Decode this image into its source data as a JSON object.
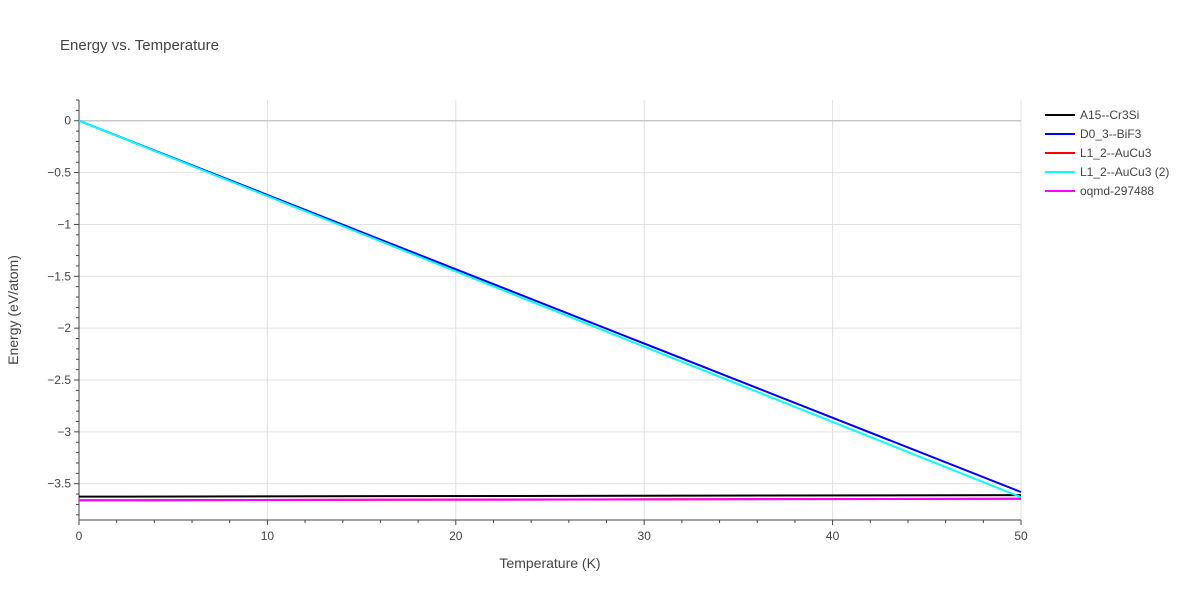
{
  "chart_data": {
    "type": "line",
    "title": "Energy vs. Temperature",
    "xlabel": "Temperature (K)",
    "ylabel": "Energy (eV/atom)",
    "xlim": [
      0,
      50
    ],
    "ylim": [
      -3.85,
      0.2
    ],
    "x_ticks": [
      0,
      10,
      20,
      30,
      40,
      50
    ],
    "x_tick_labels": [
      "0",
      "10",
      "20",
      "30",
      "40",
      "50"
    ],
    "y_ticks": [
      0,
      -0.5,
      -1,
      -1.5,
      -2,
      -2.5,
      -3,
      -3.5
    ],
    "y_tick_labels": [
      "0",
      "−0.5",
      "−1",
      "−1.5",
      "−2",
      "−2.5",
      "−3",
      "−3.5"
    ],
    "grid": true,
    "legend_position": "top-right",
    "series": [
      {
        "name": "A15--Cr3Si",
        "color": "#000000",
        "x": [
          0,
          50
        ],
        "y": [
          -3.625,
          -3.61
        ]
      },
      {
        "name": "D0_3--BiF3",
        "color": "#0000ff",
        "x": [
          0,
          50
        ],
        "y": [
          0,
          -3.58
        ]
      },
      {
        "name": "L1_2--AuCu3",
        "color": "#ff0000",
        "x": [
          0,
          50
        ],
        "y": [
          -3.66,
          -3.645
        ]
      },
      {
        "name": "L1_2--AuCu3 (2)",
        "color": "#00ffff",
        "x": [
          0,
          50
        ],
        "y": [
          0,
          -3.63
        ]
      },
      {
        "name": "oqmd-297488",
        "color": "#ff00ff",
        "x": [
          0,
          50
        ],
        "y": [
          -3.66,
          -3.645
        ]
      }
    ]
  }
}
